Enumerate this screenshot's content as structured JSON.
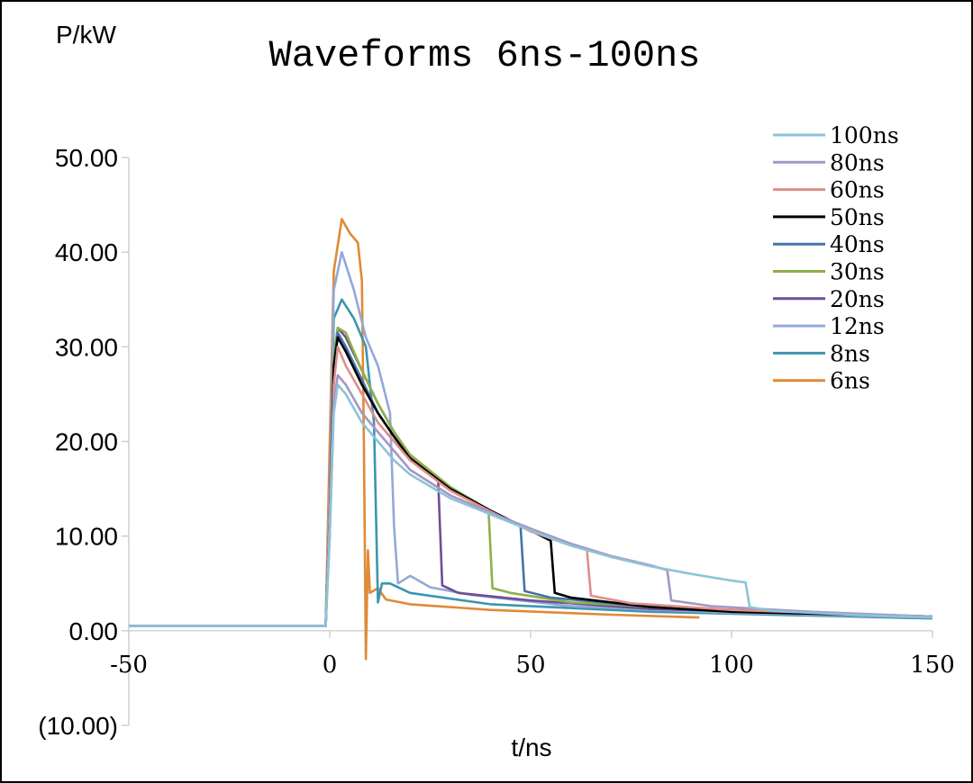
{
  "chart_data": {
    "type": "line",
    "title": "Waveforms 6ns-100ns",
    "xlabel": "t/ns",
    "ylabel": "P/kW",
    "xlim": [
      -50,
      150
    ],
    "ylim": [
      -10,
      50
    ],
    "x_ticks": [
      "-50",
      "0",
      "50",
      "100",
      "150"
    ],
    "y_ticks": [
      "50.00",
      "40.00",
      "30.00",
      "20.00",
      "10.00",
      "0.00",
      "(10.00)"
    ],
    "grid": false,
    "legend_position": "top-right",
    "series": [
      {
        "name": "100ns",
        "color": "#8CC3D8",
        "points": [
          [
            -50,
            0.5
          ],
          [
            -1,
            0.5
          ],
          [
            0,
            10
          ],
          [
            1,
            23
          ],
          [
            2,
            26
          ],
          [
            4,
            25
          ],
          [
            8,
            22
          ],
          [
            12,
            20
          ],
          [
            16,
            18
          ],
          [
            20,
            16.5
          ],
          [
            30,
            14
          ],
          [
            40,
            12.3
          ],
          [
            50,
            10.6
          ],
          [
            60,
            9
          ],
          [
            70,
            7.8
          ],
          [
            80,
            6.8
          ],
          [
            90,
            6
          ],
          [
            100,
            5.3
          ],
          [
            103.5,
            5.1
          ],
          [
            104.5,
            2.5
          ],
          [
            110,
            2.1
          ],
          [
            130,
            1.7
          ],
          [
            150,
            1.4
          ]
        ]
      },
      {
        "name": "80ns",
        "color": "#A696C4",
        "points": [
          [
            -50,
            0.5
          ],
          [
            -1,
            0.5
          ],
          [
            0,
            10
          ],
          [
            1,
            24
          ],
          [
            2,
            27
          ],
          [
            4,
            26
          ],
          [
            8,
            23
          ],
          [
            12,
            21
          ],
          [
            16,
            19
          ],
          [
            20,
            17
          ],
          [
            30,
            14.3
          ],
          [
            40,
            12.5
          ],
          [
            50,
            10.8
          ],
          [
            60,
            9.2
          ],
          [
            70,
            7.9
          ],
          [
            80,
            6.9
          ],
          [
            84,
            6.4
          ],
          [
            85,
            3.2
          ],
          [
            95,
            2.6
          ],
          [
            120,
            2
          ],
          [
            150,
            1.5
          ]
        ]
      },
      {
        "name": "60ns",
        "color": "#DE8F8B",
        "points": [
          [
            -50,
            0.5
          ],
          [
            -1,
            0.5
          ],
          [
            0,
            12
          ],
          [
            1,
            26
          ],
          [
            2,
            30
          ],
          [
            4,
            28
          ],
          [
            8,
            25
          ],
          [
            12,
            22
          ],
          [
            16,
            20
          ],
          [
            20,
            18
          ],
          [
            30,
            14.8
          ],
          [
            40,
            12.6
          ],
          [
            50,
            10.5
          ],
          [
            60,
            9
          ],
          [
            64,
            8.6
          ],
          [
            65,
            3.7
          ],
          [
            75,
            2.9
          ],
          [
            100,
            2.2
          ],
          [
            150,
            1.5
          ]
        ]
      },
      {
        "name": "50ns",
        "color": "#000000",
        "points": [
          [
            -50,
            0.5
          ],
          [
            -1,
            0.5
          ],
          [
            0,
            12
          ],
          [
            1,
            28
          ],
          [
            2,
            31
          ],
          [
            4,
            29.5
          ],
          [
            8,
            26
          ],
          [
            12,
            23
          ],
          [
            16,
            20.5
          ],
          [
            20,
            18.2
          ],
          [
            30,
            15
          ],
          [
            40,
            12.7
          ],
          [
            50,
            10.6
          ],
          [
            55,
            9.5
          ],
          [
            56,
            4
          ],
          [
            60,
            3.5
          ],
          [
            80,
            2.5
          ],
          [
            100,
            2
          ],
          [
            150,
            1.5
          ]
        ]
      },
      {
        "name": "40ns",
        "color": "#4474A8",
        "points": [
          [
            -50,
            0.5
          ],
          [
            -1,
            0.5
          ],
          [
            0,
            12
          ],
          [
            1,
            28
          ],
          [
            2,
            31.5
          ],
          [
            4,
            30
          ],
          [
            8,
            26.5
          ],
          [
            12,
            23
          ],
          [
            16,
            20.5
          ],
          [
            20,
            18.2
          ],
          [
            30,
            15
          ],
          [
            40,
            12.7
          ],
          [
            47.5,
            11
          ],
          [
            48.5,
            4.2
          ],
          [
            55,
            3.5
          ],
          [
            80,
            2.5
          ],
          [
            150,
            1.5
          ]
        ]
      },
      {
        "name": "30ns",
        "color": "#8FB04A",
        "points": [
          [
            -50,
            0.5
          ],
          [
            -1,
            0.5
          ],
          [
            0,
            12
          ],
          [
            1,
            29
          ],
          [
            2,
            32
          ],
          [
            4,
            31.5
          ],
          [
            8,
            27.5
          ],
          [
            12,
            24
          ],
          [
            16,
            21
          ],
          [
            20,
            18.6
          ],
          [
            30,
            15.2
          ],
          [
            39.5,
            12.8
          ],
          [
            40.5,
            4.5
          ],
          [
            45,
            4
          ],
          [
            60,
            3
          ],
          [
            100,
            2.1
          ],
          [
            150,
            1.4
          ]
        ]
      },
      {
        "name": "20ns",
        "color": "#6E4F94",
        "points": [
          [
            -50,
            0.5
          ],
          [
            -1,
            0.5
          ],
          [
            0,
            12
          ],
          [
            1,
            29
          ],
          [
            2,
            32
          ],
          [
            4,
            31
          ],
          [
            8,
            27.5
          ],
          [
            12,
            24
          ],
          [
            16,
            21
          ],
          [
            20,
            18.5
          ],
          [
            27,
            15.8
          ],
          [
            28,
            4.8
          ],
          [
            32,
            4
          ],
          [
            50,
            3.2
          ],
          [
            80,
            2.3
          ],
          [
            150,
            1.5
          ]
        ]
      },
      {
        "name": "12ns",
        "color": "#92A9D8",
        "points": [
          [
            -50,
            0.5
          ],
          [
            -1,
            0.5
          ],
          [
            0,
            15
          ],
          [
            1,
            36
          ],
          [
            3,
            40
          ],
          [
            6,
            36
          ],
          [
            9,
            31
          ],
          [
            12,
            28
          ],
          [
            15,
            23
          ],
          [
            16,
            11
          ],
          [
            17,
            5
          ],
          [
            20,
            5.8
          ],
          [
            25,
            4.6
          ],
          [
            35,
            3.8
          ],
          [
            60,
            2.6
          ],
          [
            100,
            1.9
          ],
          [
            150,
            1.4
          ]
        ]
      },
      {
        "name": "8ns",
        "color": "#3C96AD",
        "points": [
          [
            -50,
            0.5
          ],
          [
            -1,
            0.5
          ],
          [
            0,
            15
          ],
          [
            1,
            33
          ],
          [
            3,
            35
          ],
          [
            6,
            33
          ],
          [
            9,
            30
          ],
          [
            11,
            22
          ],
          [
            12,
            3
          ],
          [
            13,
            5
          ],
          [
            15,
            5
          ],
          [
            20,
            4
          ],
          [
            40,
            2.8
          ],
          [
            80,
            2
          ],
          [
            150,
            1.3
          ]
        ]
      },
      {
        "name": "6ns",
        "color": "#E08A36",
        "points": [
          [
            -50,
            0.5
          ],
          [
            -1,
            0.5
          ],
          [
            0,
            20
          ],
          [
            1,
            38
          ],
          [
            3,
            43.5
          ],
          [
            5,
            42
          ],
          [
            7,
            41
          ],
          [
            8,
            37
          ],
          [
            8.5,
            20
          ],
          [
            9,
            -3
          ],
          [
            9.5,
            8.5
          ],
          [
            10,
            4
          ],
          [
            12,
            4.5
          ],
          [
            14,
            3.3
          ],
          [
            20,
            2.8
          ],
          [
            40,
            2.2
          ],
          [
            70,
            1.7
          ],
          [
            92,
            1.4
          ]
        ]
      }
    ]
  }
}
